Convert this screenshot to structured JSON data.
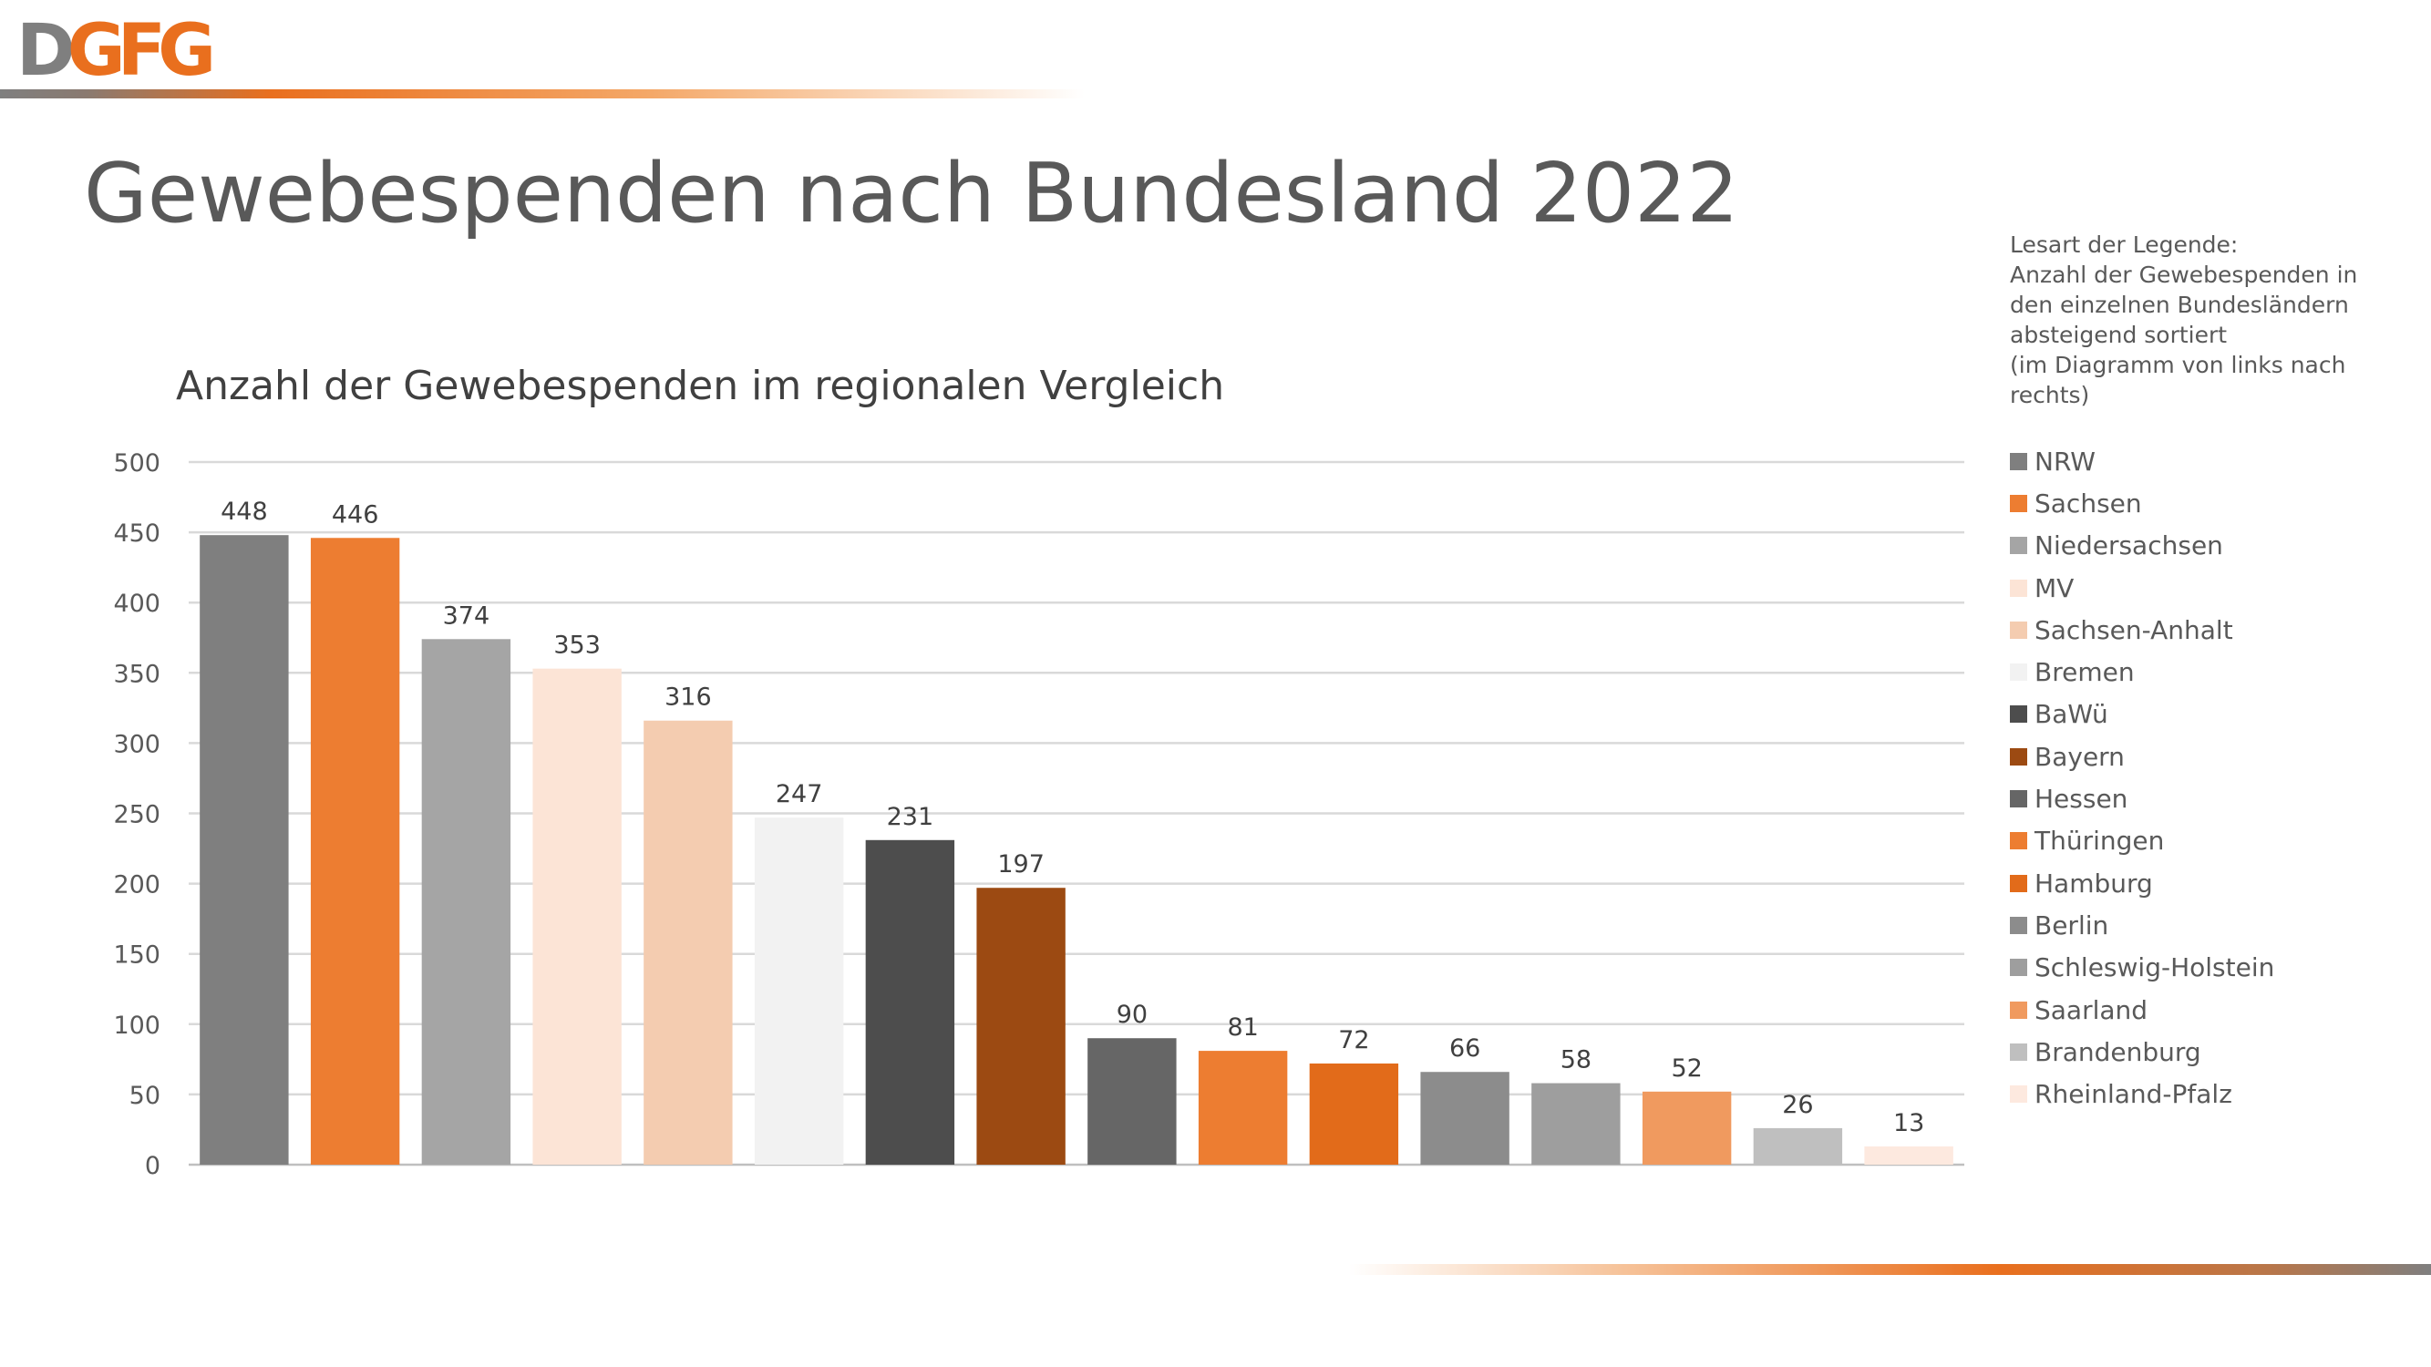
{
  "logo": {
    "text": "DGFG",
    "letter_colors": [
      "#7f7f7f",
      "#e96f1e",
      "#e96f1e",
      "#e96f1e"
    ]
  },
  "page": {
    "title": "Gewebespenden nach Bundesland 2022"
  },
  "legend_note": [
    "Lesart der Legende:",
    "Anzahl der Gewebespenden in",
    "den einzelnen Bundesländern",
    "absteigend sortiert",
    "(im Diagramm von links nach",
    "rechts)"
  ],
  "chart_data": {
    "type": "bar",
    "title": "Anzahl der Gewebespenden im regionalen Vergleich",
    "xlabel": "",
    "ylabel": "",
    "ylim": [
      0,
      500
    ],
    "yticks": [
      0,
      50,
      100,
      150,
      200,
      250,
      300,
      350,
      400,
      450,
      500
    ],
    "grid": true,
    "legend_position": "right",
    "categories": [
      "NRW",
      "Sachsen",
      "Niedersachsen",
      "MV",
      "Sachsen-Anhalt",
      "Bremen",
      "BaWü",
      "Bayern",
      "Hessen",
      "Thüringen",
      "Hamburg",
      "Berlin",
      "Schleswig-Holstein",
      "Saarland",
      "Brandenburg",
      "Rheinland-Pfalz"
    ],
    "values": [
      448,
      446,
      374,
      353,
      316,
      247,
      231,
      197,
      90,
      81,
      72,
      66,
      58,
      52,
      26,
      13
    ],
    "colors": [
      "#7f7f7f",
      "#ed7d31",
      "#a5a5a5",
      "#fce4d6",
      "#f4ccb0",
      "#f2f2f2",
      "#4d4d4d",
      "#9c4a12",
      "#666666",
      "#ed7d31",
      "#e26b1a",
      "#8c8c8c",
      "#9e9e9e",
      "#f09a5f",
      "#bfbfbf",
      "#fde9df"
    ]
  }
}
